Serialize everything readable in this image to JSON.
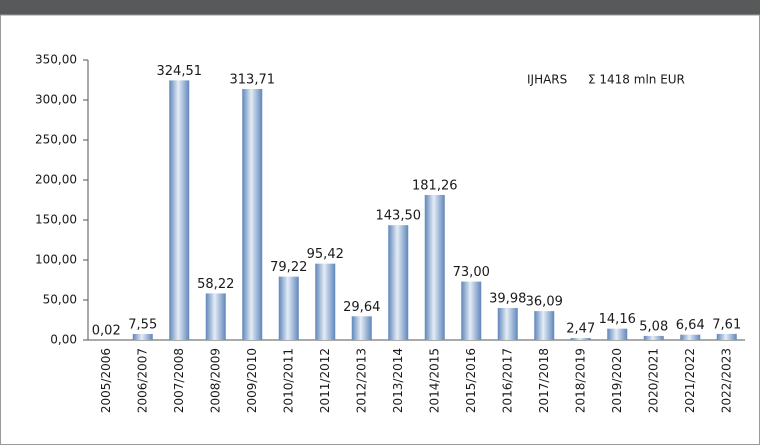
{
  "chart_data": {
    "type": "bar",
    "annotations": [
      "IJHARS",
      "Σ 1418 mln EUR"
    ],
    "categories": [
      "2005/2006",
      "2006/2007",
      "2007/2008",
      "2008/2009",
      "2009/2010",
      "2010/2011",
      "2011/2012",
      "2012/2013",
      "2013/2014",
      "2014/2015",
      "2015/2016",
      "2016/2017",
      "2017/2018",
      "2018/2019",
      "2019/2020",
      "2020/2021",
      "2021/2022",
      "2022/2023"
    ],
    "values": [
      0.02,
      7.55,
      324.51,
      58.22,
      313.71,
      79.22,
      95.42,
      29.64,
      143.5,
      181.26,
      73.0,
      39.98,
      36.09,
      2.47,
      14.16,
      5.08,
      6.64,
      7.61
    ],
    "value_labels": [
      "0,02",
      "7,55",
      "324,51",
      "58,22",
      "313,71",
      "79,22",
      "95,42",
      "29,64",
      "143,50",
      "181,26",
      "73,00",
      "39,98",
      "36,09",
      "2,47",
      "14,16",
      "5,08",
      "6,64",
      "7,61"
    ],
    "color": "#5f86ba",
    "ylim": [
      0,
      350
    ],
    "yticks": [
      {
        "value": 0,
        "label": "0,00"
      },
      {
        "value": 50,
        "label": "50,00"
      },
      {
        "value": 100,
        "label": "100,00"
      },
      {
        "value": 150,
        "label": "150,00"
      },
      {
        "value": 200,
        "label": "200,00"
      },
      {
        "value": 250,
        "label": "250,00"
      },
      {
        "value": 300,
        "label": "300,00"
      },
      {
        "value": 350,
        "label": "350,00"
      }
    ],
    "grid": false
  }
}
